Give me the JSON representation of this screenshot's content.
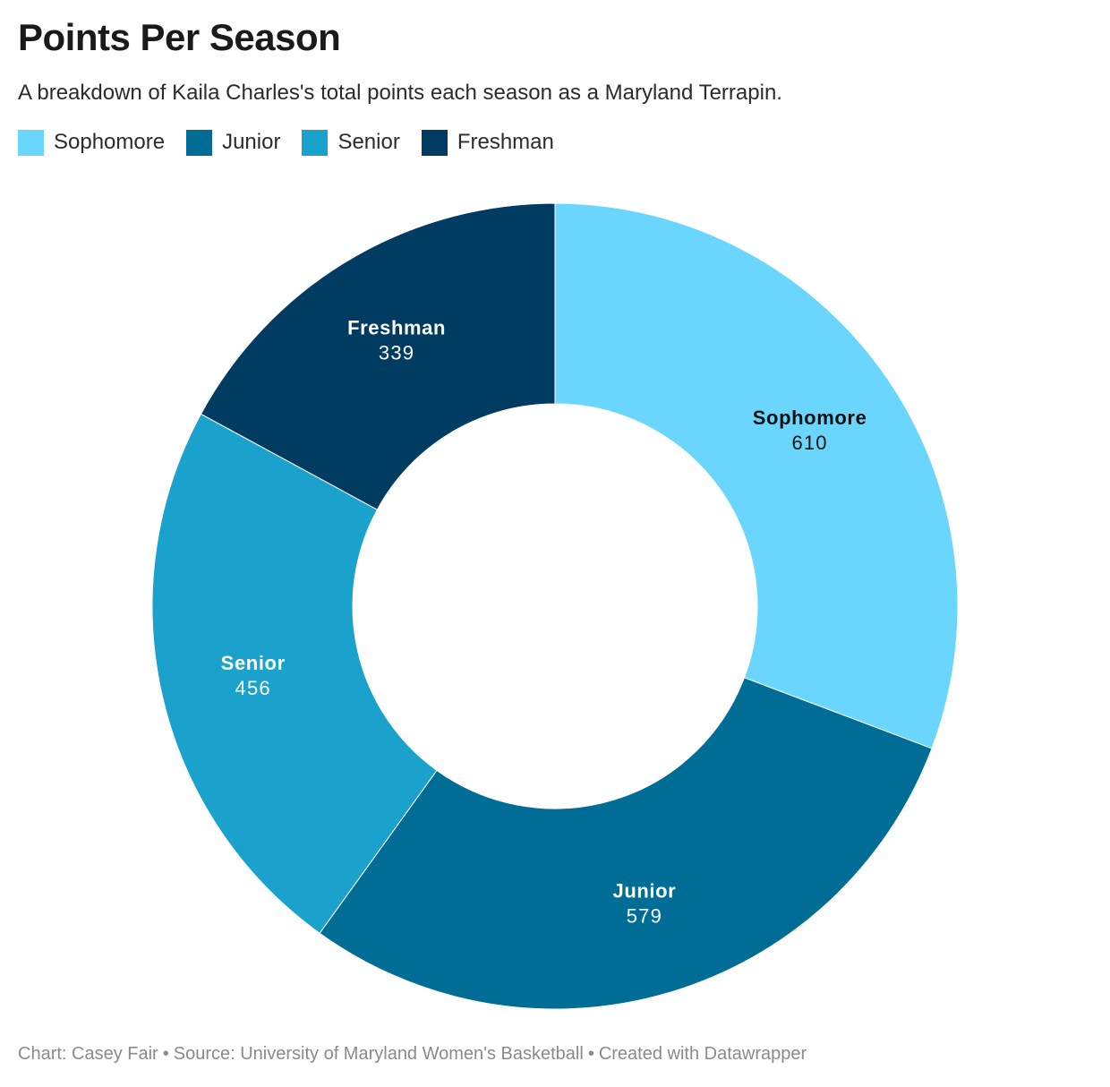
{
  "chart_data": {
    "type": "pie",
    "variant": "donut",
    "title": "Points Per Season",
    "subtitle": "A breakdown of Kaila Charles's total points each season as a Maryland Terrapin.",
    "categories": [
      "Sophomore",
      "Junior",
      "Senior",
      "Freshman"
    ],
    "values": [
      610,
      579,
      456,
      339
    ],
    "colors": [
      "#6bd6fd",
      "#006d96",
      "#1aa1cc",
      "#003b61"
    ],
    "label_colors": [
      "#111111",
      "#ffffff",
      "#ffffff",
      "#ffffff"
    ],
    "legend_position": "top-left",
    "start": "12 o'clock, clockwise"
  },
  "legend": [
    {
      "label": "Sophomore",
      "color": "#6bd6fd"
    },
    {
      "label": "Junior",
      "color": "#006d96"
    },
    {
      "label": "Senior",
      "color": "#1aa1cc"
    },
    {
      "label": "Freshman",
      "color": "#003b61"
    }
  ],
  "footer": {
    "chart_credit": "Chart: Casey Fair",
    "source": "Source: University of Maryland Women's Basketball",
    "tool": "Created with Datawrapper",
    "separator": "•"
  }
}
